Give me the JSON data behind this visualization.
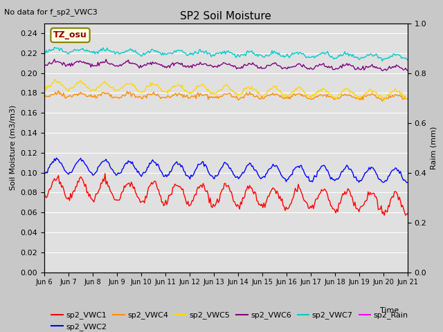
{
  "title": "SP2 Soil Moisture",
  "no_data_text": "No data for f_sp2_VWC3",
  "tz_label": "TZ_osu",
  "ylabel_left": "Soil Moisture (m3/m3)",
  "ylabel_right": "Raim (mm)",
  "ylim_left": [
    0.0,
    0.25
  ],
  "ylim_right": [
    0.0,
    1.0
  ],
  "yticks_left": [
    0.0,
    0.02,
    0.04,
    0.06,
    0.08,
    0.1,
    0.12,
    0.14,
    0.16,
    0.18,
    0.2,
    0.22,
    0.24
  ],
  "yticks_right": [
    0.0,
    0.2,
    0.4,
    0.6,
    0.8,
    1.0
  ],
  "xtick_labels": [
    "Jun 6",
    "Jun 7",
    "Jun 8",
    "Jun 9",
    "Jun 10",
    "Jun 11",
    "Jun 12",
    "Jun 13",
    "Jun 14",
    "Jun 15",
    "Jun 16",
    "Jun 17",
    "Jun 18",
    "Jun 19",
    "Jun 20",
    "Jun 21"
  ],
  "series": {
    "sp2_VWC1": {
      "color": "#ff0000",
      "base": 0.085,
      "amp": 0.01,
      "trend": -0.016,
      "noise": 0.002
    },
    "sp2_VWC2": {
      "color": "#0000ff",
      "base": 0.107,
      "amp": 0.007,
      "trend": -0.01,
      "noise": 0.001
    },
    "sp2_VWC4": {
      "color": "#ff8c00",
      "base": 0.178,
      "amp": 0.002,
      "trend": -0.002,
      "noise": 0.001
    },
    "sp2_VWC5": {
      "color": "#ffd700",
      "base": 0.188,
      "amp": 0.004,
      "trend": -0.01,
      "noise": 0.001
    },
    "sp2_VWC6": {
      "color": "#800080",
      "base": 0.21,
      "amp": 0.002,
      "trend": -0.005,
      "noise": 0.001
    },
    "sp2_VWC7": {
      "color": "#00cccc",
      "base": 0.223,
      "amp": 0.002,
      "trend": -0.007,
      "noise": 0.001
    }
  },
  "rain_color": "#ff00ff",
  "bg_color": "#c8c8c8",
  "plot_bg_color": "#e0e0e0",
  "grid_color": "#ffffff",
  "legend_entries_row1": [
    "sp2_VWC1",
    "sp2_VWC2",
    "sp2_VWC4",
    "sp2_VWC5",
    "sp2_VWC6",
    "sp2_VWC7"
  ],
  "legend_colors_row1": [
    "#ff0000",
    "#0000ff",
    "#ff8c00",
    "#ffd700",
    "#800080",
    "#00cccc"
  ],
  "legend_entries_row2": [
    "sp2_Rain"
  ],
  "legend_colors_row2": [
    "#ff00ff"
  ]
}
